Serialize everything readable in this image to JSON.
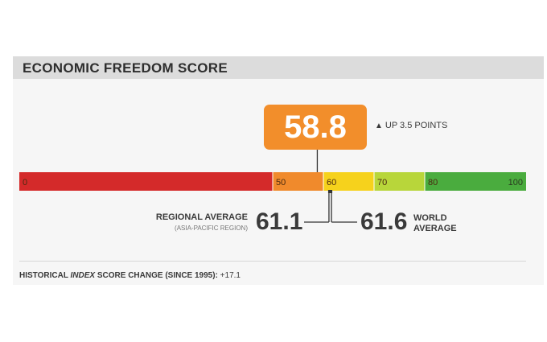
{
  "header": {
    "title": "ECONOMIC FREEDOM SCORE"
  },
  "chart_data": {
    "type": "gauge",
    "scale": [
      0,
      100
    ],
    "segments": [
      {
        "from": 0,
        "to": 50,
        "label": "0",
        "color": "#d42a2a"
      },
      {
        "from": 50,
        "to": 60,
        "label": "50",
        "color": "#f08a2c"
      },
      {
        "from": 60,
        "to": 70,
        "label": "60",
        "color": "#f6d21c"
      },
      {
        "from": 70,
        "to": 80,
        "label": "70",
        "color": "#b8d63a"
      },
      {
        "from": 80,
        "to": 100,
        "label": "80",
        "color": "#4aac3e"
      }
    ],
    "end_label": "100",
    "score": {
      "value": 58.8,
      "display": "58.8",
      "color": "#f28e2b"
    },
    "change": {
      "arrow": "▲",
      "text": "UP 3.5 POINTS"
    },
    "regional_average": {
      "value": 61.1,
      "display": "61.1",
      "label": "REGIONAL AVERAGE",
      "sublabel": "(ASIA-PACIFIC REGION)"
    },
    "world_average": {
      "value": 61.6,
      "display": "61.6",
      "label_line1": "WORLD",
      "label_line2": "AVERAGE"
    }
  },
  "history": {
    "prefix": "HISTORICAL ",
    "index_word": "INDEX",
    "suffix": " SCORE CHANGE (SINCE 1995):",
    "value": " +17.1"
  }
}
